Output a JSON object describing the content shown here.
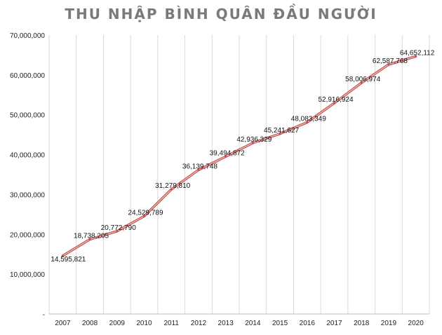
{
  "chart_data": {
    "type": "line",
    "title": "THU NHẬP BÌNH QUÂN ĐẦU NGƯỜI",
    "xlabel": "",
    "ylabel": "",
    "categories": [
      "2007",
      "2008",
      "2009",
      "2010",
      "2011",
      "2012",
      "2013",
      "2014",
      "2015",
      "2016",
      "2017",
      "2018",
      "2019",
      "2020"
    ],
    "series": [
      {
        "values": [
          14595821,
          18738205,
          20772790,
          24529789,
          31279810,
          36139748,
          39494872,
          42936329,
          45241627,
          48083349,
          52916924,
          58006974,
          62587768,
          64652112
        ]
      }
    ],
    "data_labels": [
      "14,595,821",
      "18,738,205",
      "20,772,790",
      "24,529,789",
      "31,279,810",
      "36,139,748",
      "39,494,872",
      "42,936,329",
      "45,241,627",
      "48,083,349",
      "52,916,924",
      "58,006,974",
      "62,587,768",
      "64,652,112"
    ],
    "ylim": [
      0,
      70000000
    ],
    "y_tick_labels": [
      "-",
      "10,000,000",
      "20,000,000",
      "30,000,000",
      "40,000,000",
      "50,000,000",
      "60,000,000",
      "70,000,000"
    ],
    "grid": "vertical",
    "line_color": "#c0504d",
    "line_inner_color": "#f2c6c5"
  }
}
